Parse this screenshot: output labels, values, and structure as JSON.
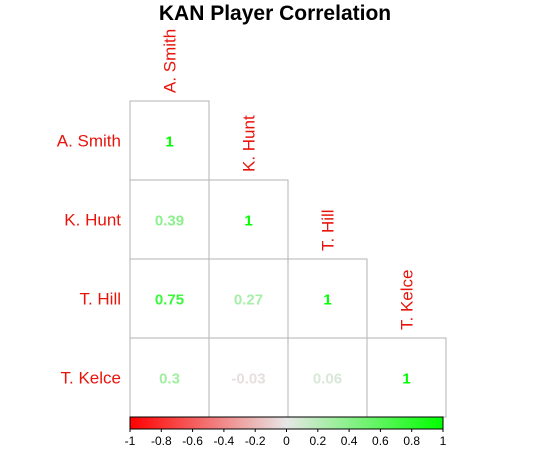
{
  "chart_data": {
    "type": "heatmap",
    "title": "KAN Player Correlation",
    "variables": [
      "A. Smith",
      "K. Hunt",
      "T. Hill",
      "T. Kelce"
    ],
    "matrix_shape": "lower-triangle",
    "cells": [
      {
        "row": "A. Smith",
        "col": "A. Smith",
        "value": 1,
        "label": "1"
      },
      {
        "row": "K. Hunt",
        "col": "A. Smith",
        "value": 0.39,
        "label": "0.39"
      },
      {
        "row": "K. Hunt",
        "col": "K. Hunt",
        "value": 1,
        "label": "1"
      },
      {
        "row": "T. Hill",
        "col": "A. Smith",
        "value": 0.75,
        "label": "0.75"
      },
      {
        "row": "T. Hill",
        "col": "K. Hunt",
        "value": 0.27,
        "label": "0.27"
      },
      {
        "row": "T. Hill",
        "col": "T. Hill",
        "value": 1,
        "label": "1"
      },
      {
        "row": "T. Kelce",
        "col": "A. Smith",
        "value": 0.3,
        "label": "0.3"
      },
      {
        "row": "T. Kelce",
        "col": "K. Hunt",
        "value": -0.03,
        "label": "-0.03"
      },
      {
        "row": "T. Kelce",
        "col": "T. Hill",
        "value": 0.06,
        "label": "0.06"
      },
      {
        "row": "T. Kelce",
        "col": "T. Kelce",
        "value": 1,
        "label": "1"
      }
    ],
    "color_scale": {
      "min": -1,
      "max": 1,
      "low_color": "#ff0000",
      "mid_color": "#e6e6e6",
      "high_color": "#00ff00",
      "ticks": [
        "-1",
        "-0.8",
        "-0.6",
        "-0.4",
        "-0.2",
        "0",
        "0.2",
        "0.4",
        "0.6",
        "0.8",
        "1"
      ]
    },
    "label_color": "#e8140c",
    "legend_placement": "bottom",
    "grid": false
  }
}
